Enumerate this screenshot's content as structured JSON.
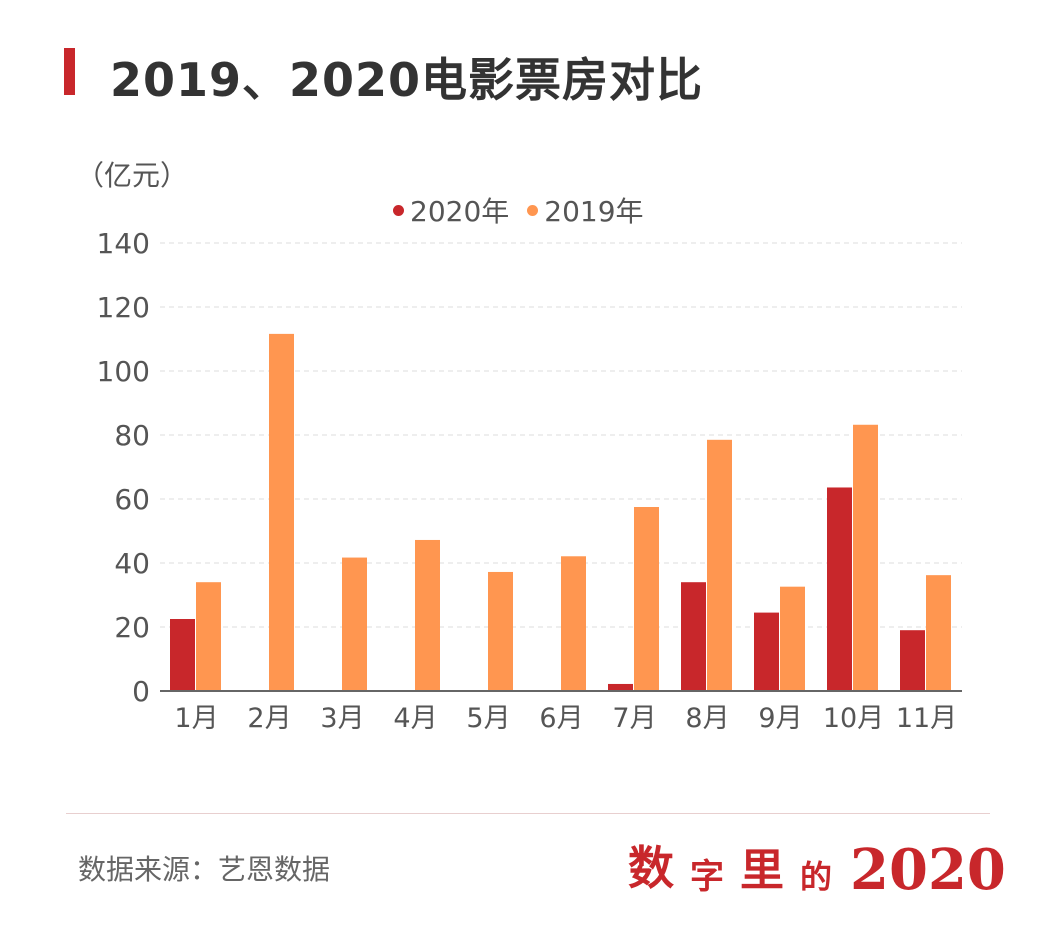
{
  "title": "2019、2020电影票房对比",
  "colors": {
    "accent": "#c8272b",
    "series2020": "#c8272b",
    "series2019": "#ff9650",
    "grid": "#dddddd"
  },
  "chart_data": {
    "type": "bar",
    "unit": "（亿元）",
    "categories": [
      "1月",
      "2月",
      "3月",
      "4月",
      "5月",
      "6月",
      "7月",
      "8月",
      "9月",
      "10月",
      "11月"
    ],
    "series": [
      {
        "name": "2020年",
        "color": "#c8272b",
        "values": [
          22.5,
          0,
          0,
          0,
          0,
          0,
          2.2,
          34,
          24.5,
          63.6,
          19
        ]
      },
      {
        "name": "2019年",
        "color": "#ff9650",
        "values": [
          34,
          111.6,
          41.7,
          47.2,
          37.2,
          42.1,
          57.5,
          78.5,
          32.6,
          83.2,
          36.2
        ]
      }
    ],
    "y_ticks": [
      "0",
      "20",
      "40",
      "60",
      "80",
      "100",
      "120",
      "140"
    ],
    "ylim": [
      0,
      140
    ],
    "grid": true,
    "legend_position": "top-center"
  },
  "footer": {
    "source": "数据来源：艺恩数据",
    "brand_chars": [
      "数",
      "字",
      "里",
      "的"
    ],
    "brand_year": "2020"
  }
}
